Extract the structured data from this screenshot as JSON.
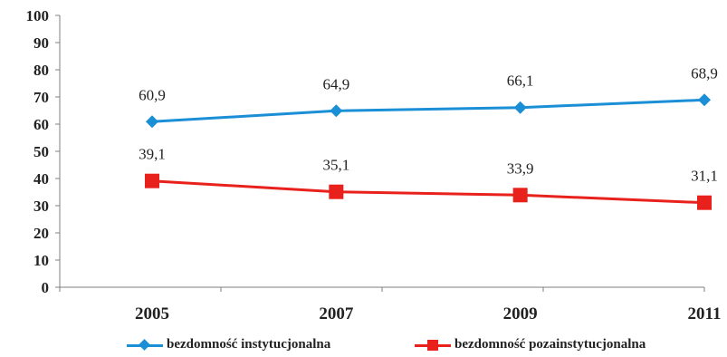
{
  "chart_data": {
    "type": "line",
    "categories": [
      "2005",
      "2007",
      "2009",
      "2011"
    ],
    "ylim": [
      0,
      100
    ],
    "yticks": [
      0,
      10,
      20,
      30,
      40,
      50,
      60,
      70,
      80,
      90,
      100
    ],
    "grid": false,
    "legend_position": "bottom",
    "series": [
      {
        "name": "bezdomność instytucjonalna",
        "values": [
          60.9,
          64.9,
          66.1,
          68.9
        ],
        "labels": [
          "60,9",
          "64,9",
          "66,1",
          "68,9"
        ],
        "color": "#1a8fd6",
        "marker": "diamond"
      },
      {
        "name": "bezdomność pozainstytucjonalna",
        "values": [
          39.1,
          35.1,
          33.9,
          31.1
        ],
        "labels": [
          "39,1",
          "35,1",
          "33,9",
          "31,1"
        ],
        "color": "#e8211c",
        "marker": "square"
      }
    ]
  }
}
